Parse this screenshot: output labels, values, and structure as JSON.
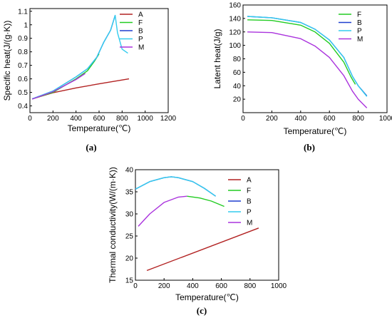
{
  "chart_data": [
    {
      "panel": "(a)",
      "type": "line",
      "title": "",
      "xlabel": "Temperature(℃)",
      "ylabel": "Specific heat(J/(g·K))",
      "xlim": [
        0,
        1200
      ],
      "ylim": [
        0.35,
        1.12
      ],
      "xticks": [
        0,
        200,
        400,
        600,
        800,
        1000,
        1200
      ],
      "yticks": [
        0.4,
        0.5,
        0.6,
        0.7,
        0.8,
        0.9,
        1.0,
        1.1
      ],
      "grid": false,
      "legend_position": "top-right",
      "series": [
        {
          "name": "A",
          "color": "#b22222",
          "points": [
            [
              20,
              0.452
            ],
            [
              200,
              0.497
            ],
            [
              400,
              0.533
            ],
            [
              600,
              0.563
            ],
            [
              860,
              0.6
            ]
          ]
        },
        {
          "name": "F",
          "color": "#22cc22",
          "points": [
            [
              20,
              0.452
            ],
            [
              200,
              0.5
            ],
            [
              400,
              0.6
            ],
            [
              500,
              0.66
            ],
            [
              560,
              0.73
            ],
            [
              600,
              0.785
            ]
          ]
        },
        {
          "name": "B",
          "color": "#1e3fcf",
          "points": [
            [
              20,
              0.452
            ],
            [
              200,
              0.51
            ],
            [
              400,
              0.615
            ],
            [
              500,
              0.675
            ],
            [
              580,
              0.76
            ],
            [
              640,
              0.87
            ],
            [
              700,
              0.96
            ],
            [
              740,
              1.07
            ]
          ]
        },
        {
          "name": "P",
          "color": "#33ccee",
          "points": [
            [
              20,
              0.452
            ],
            [
              200,
              0.51
            ],
            [
              400,
              0.615
            ],
            [
              500,
              0.675
            ],
            [
              580,
              0.76
            ],
            [
              640,
              0.87
            ],
            [
              700,
              0.96
            ],
            [
              740,
              1.07
            ],
            [
              760,
              0.94
            ],
            [
              800,
              0.82
            ],
            [
              850,
              0.79
            ]
          ]
        },
        {
          "name": "M",
          "color": "#aa33dd",
          "points": [
            [
              20,
              0.45
            ],
            [
              200,
              0.505
            ],
            [
              400,
              0.595
            ],
            [
              480,
              0.64
            ]
          ]
        }
      ]
    },
    {
      "panel": "(b)",
      "type": "line",
      "title": "",
      "xlabel": "Temperature(℃)",
      "ylabel": "Latent heat(J/g)",
      "xlim": [
        0,
        1000
      ],
      "ylim": [
        0,
        160
      ],
      "xticks": [
        0,
        200,
        400,
        600,
        800,
        1000
      ],
      "yticks": [
        20,
        40,
        60,
        80,
        100,
        120,
        140,
        160
      ],
      "grid": false,
      "legend_position": "top-right",
      "series": [
        {
          "name": "F",
          "color": "#22cc22",
          "points": [
            [
              30,
              138
            ],
            [
              200,
              137
            ],
            [
              400,
              130
            ],
            [
              500,
              120
            ],
            [
              600,
              103
            ],
            [
              700,
              75
            ],
            [
              750,
              53
            ],
            [
              780,
              42
            ]
          ]
        },
        {
          "name": "B",
          "color": "#1e3fcf",
          "points": [
            [
              30,
              143
            ],
            [
              200,
              141
            ],
            [
              400,
              134
            ],
            [
              500,
              124
            ],
            [
              600,
              108
            ],
            [
              700,
              82
            ],
            [
              760,
              54
            ],
            [
              800,
              40
            ],
            [
              860,
              25
            ]
          ]
        },
        {
          "name": "P",
          "color": "#33ccee",
          "points": [
            [
              30,
              143
            ],
            [
              200,
              141
            ],
            [
              400,
              134
            ],
            [
              500,
              124
            ],
            [
              600,
              108
            ],
            [
              700,
              82
            ],
            [
              760,
              54
            ],
            [
              800,
              40
            ],
            [
              860,
              24
            ]
          ]
        },
        {
          "name": "M",
          "color": "#aa33dd",
          "points": [
            [
              30,
              120
            ],
            [
              200,
              119
            ],
            [
              400,
              110
            ],
            [
              500,
              99
            ],
            [
              600,
              82
            ],
            [
              700,
              55
            ],
            [
              760,
              32
            ],
            [
              800,
              20
            ],
            [
              860,
              7
            ]
          ]
        }
      ]
    },
    {
      "panel": "(c)",
      "type": "line",
      "title": "",
      "xlabel": "Temperature(℃)",
      "ylabel": "Thermal conductivity(W/(m·K))",
      "xlim": [
        0,
        1000
      ],
      "ylim": [
        15,
        40
      ],
      "xticks": [
        0,
        200,
        400,
        600,
        800,
        1000
      ],
      "yticks": [
        15,
        20,
        25,
        30,
        35,
        40
      ],
      "grid": false,
      "legend_position": "top-right",
      "series": [
        {
          "name": "A",
          "color": "#b22222",
          "points": [
            [
              80,
              17.2
            ],
            [
              860,
              26.8
            ]
          ]
        },
        {
          "name": "F",
          "color": "#22cc22",
          "points": [
            [
              360,
              34.0
            ],
            [
              450,
              33.6
            ],
            [
              530,
              32.9
            ],
            [
              620,
              31.7
            ]
          ]
        },
        {
          "name": "B",
          "color": "#1e3fcf",
          "points": [
            [
              0,
              35.6
            ],
            [
              100,
              37.3
            ],
            [
              200,
              38.2
            ],
            [
              250,
              38.4
            ],
            [
              300,
              38.2
            ],
            [
              400,
              37.3
            ],
            [
              480,
              35.8
            ],
            [
              560,
              34.0
            ]
          ]
        },
        {
          "name": "P",
          "color": "#33ccee",
          "points": [
            [
              0,
              35.6
            ],
            [
              100,
              37.3
            ],
            [
              200,
              38.2
            ],
            [
              250,
              38.4
            ],
            [
              300,
              38.2
            ],
            [
              400,
              37.3
            ],
            [
              480,
              35.8
            ],
            [
              560,
              34.0
            ]
          ]
        },
        {
          "name": "M",
          "color": "#aa33dd",
          "points": [
            [
              20,
              27.2
            ],
            [
              100,
              30.0
            ],
            [
              200,
              32.6
            ],
            [
              300,
              33.8
            ],
            [
              360,
              34.0
            ]
          ]
        }
      ]
    }
  ]
}
